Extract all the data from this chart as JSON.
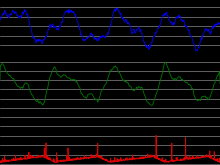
{
  "background_color": "#000000",
  "grid_color": "#aaaaaa",
  "grid_linewidth": 0.4,
  "panel1_color": "#0000ee",
  "panel2_color": "#007700",
  "panel3_color": "#dd0000",
  "linewidth": 0.6,
  "figsize": [
    2.2,
    1.65
  ],
  "dpi": 100,
  "n_points": 800
}
